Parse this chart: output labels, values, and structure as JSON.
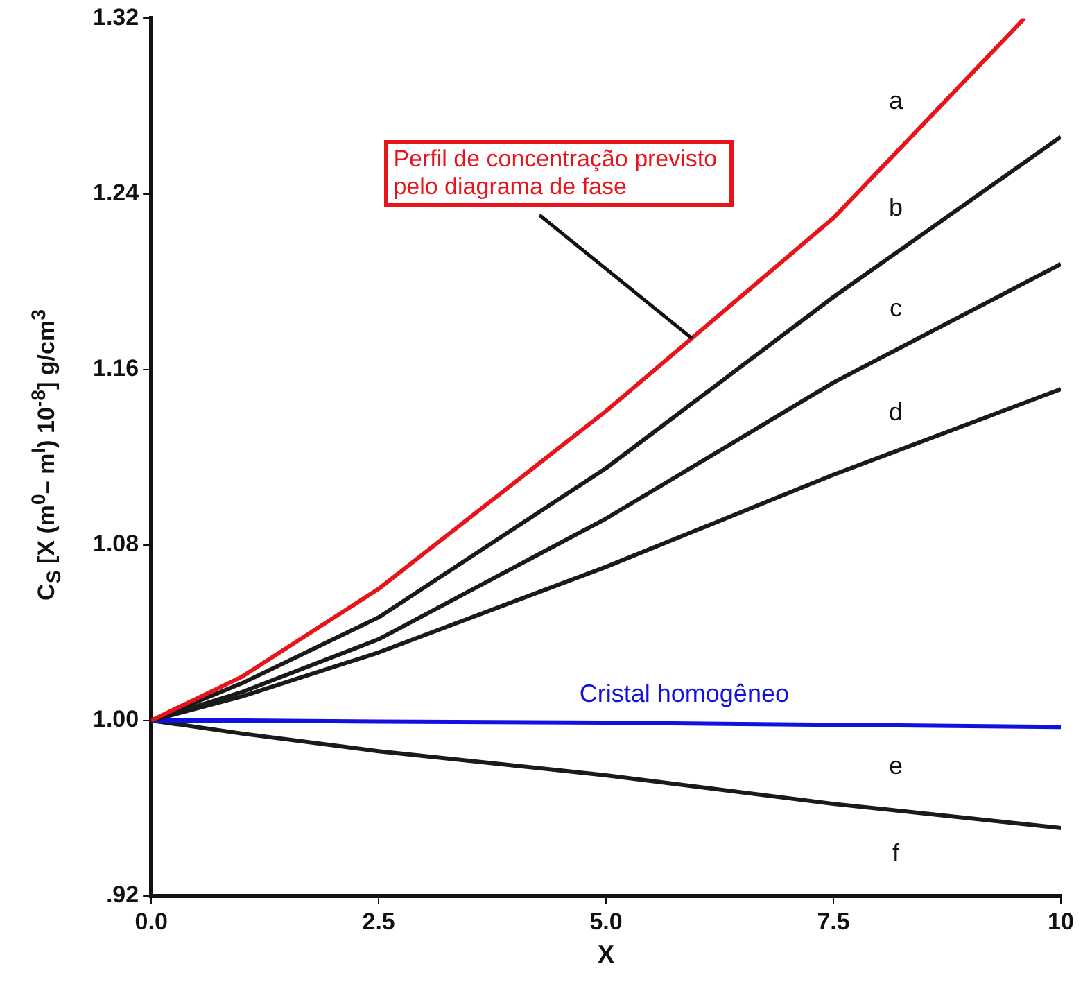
{
  "chart_data": {
    "type": "line",
    "xlabel": "X",
    "ylabel": "C$_{S}$ [X (m$^{0}$– m$^{I}$) 10$^{-8}$] g/cm$^{3}$",
    "x": [
      0,
      1,
      2.5,
      5,
      7.5,
      10
    ],
    "series": [
      {
        "name": "a",
        "color": "#e8141c",
        "x": [
          0,
          1,
          2.5,
          5,
          7.5,
          9.6
        ],
        "values": [
          1,
          1.02,
          1.06,
          1.141,
          1.229,
          1.32
        ]
      },
      {
        "name": "b",
        "color": "#1a1a1a",
        "values": [
          1,
          1.017,
          1.047,
          1.115,
          1.193,
          1.266
        ]
      },
      {
        "name": "c",
        "color": "#1a1a1a",
        "values": [
          1,
          1.013,
          1.037,
          1.092,
          1.154,
          1.208
        ]
      },
      {
        "name": "d",
        "color": "#1a1a1a",
        "values": [
          1,
          1.011,
          1.031,
          1.07,
          1.112,
          1.151
        ]
      },
      {
        "name": "e",
        "color": "#1010e0",
        "values": [
          1,
          1,
          0.9995,
          0.999,
          0.998,
          0.997
        ]
      },
      {
        "name": "f",
        "color": "#1a1a1a",
        "values": [
          1,
          0.994,
          0.986,
          0.975,
          0.962,
          0.951
        ]
      }
    ],
    "xlim": [
      0,
      10
    ],
    "xticks": [
      {
        "value": 0,
        "label": "0.0"
      },
      {
        "value": 2.5,
        "label": "2.5"
      },
      {
        "value": 5,
        "label": "5.0"
      },
      {
        "value": 7.5,
        "label": "7.5"
      },
      10
    ],
    "ylim": [
      0.92,
      1.32
    ],
    "yticks": [
      {
        "value": 0.92,
        "label": ".92"
      },
      {
        "value": 1,
        "label": "1.00"
      },
      {
        "value": 1.08,
        "label": "1.08"
      },
      {
        "value": 1.16,
        "label": "1.16"
      },
      {
        "value": 1.24,
        "label": "1.24"
      },
      {
        "value": 1.32,
        "label": "1.32"
      }
    ],
    "grid": false,
    "legend": false,
    "marker": "none",
    "line_style": "solid",
    "annotations": [
      {
        "text": "Perfil de concentração previsto pelo diagrama de  fase",
        "x": 5.94,
        "y": 1.174
      },
      {
        "text": "Cristal homogêneo",
        "x": 5.86,
        "y": 0.998
      }
    ]
  }
}
